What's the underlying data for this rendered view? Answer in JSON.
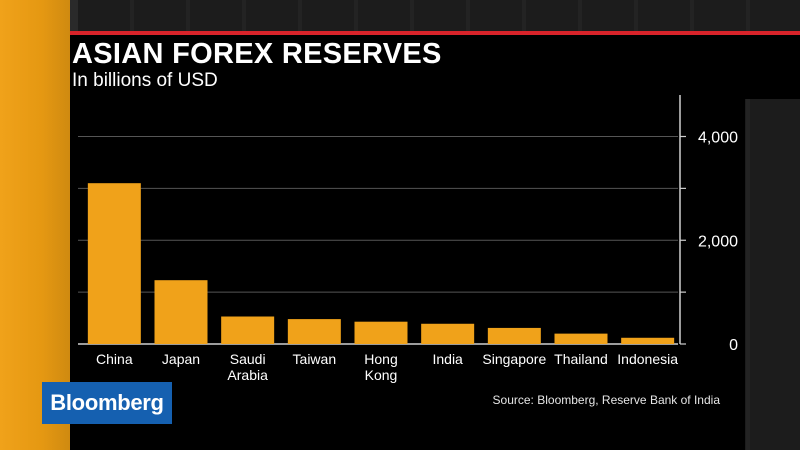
{
  "header": {
    "title": "ASIAN FOREX RESERVES",
    "subtitle": "In billions of USD"
  },
  "brand": {
    "logo_text": "Bloomberg",
    "logo_color": "#1560b0",
    "accent_color": "#f0a21a",
    "rule_color": "#d8232a"
  },
  "source": "Source: Bloomberg, Reserve Bank of India",
  "chart_data": {
    "type": "bar",
    "title": "ASIAN FOREX RESERVES",
    "subtitle": "In billions of USD",
    "categories": [
      [
        "China"
      ],
      [
        "Japan"
      ],
      [
        "Saudi",
        "Arabia"
      ],
      [
        "Taiwan"
      ],
      [
        "Hong",
        "Kong"
      ],
      [
        "India"
      ],
      [
        "Singapore"
      ],
      [
        "Thailand"
      ],
      [
        "Indonesia"
      ]
    ],
    "values": [
      3100,
      1230,
      530,
      480,
      430,
      390,
      310,
      200,
      120
    ],
    "ylim": [
      0,
      4800
    ],
    "yticks": [
      0,
      2000,
      4000
    ],
    "ytick_labels": [
      "0",
      "2,000",
      "4,000"
    ],
    "y_axis_side": "right",
    "grid": true,
    "bar_color": "#f0a21a"
  }
}
